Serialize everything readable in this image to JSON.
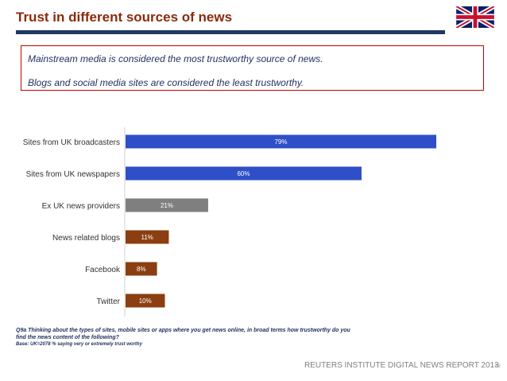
{
  "header": {
    "title": "Trust in different sources of news"
  },
  "callout": {
    "line1": "Mainstream media is considered the most trustworthy source of news.",
    "line2": "Blogs and social media sites are considered the least trustworthy."
  },
  "chart_data": {
    "type": "bar",
    "orientation": "horizontal",
    "categories": [
      "Sites  from UK broadcasters",
      "Sites from UK newspapers",
      "Ex UK news providers",
      "News related blogs",
      "Facebook",
      "Twitter"
    ],
    "values": [
      79,
      60,
      21,
      11,
      8,
      10
    ],
    "value_labels": [
      "79%",
      "60%",
      "21%",
      "11%",
      "8%",
      "10%"
    ],
    "bar_colors": [
      "#2e4fc7",
      "#2e4fc7",
      "#7f7f7f",
      "#8b3e12",
      "#8b3e12",
      "#8b3e12"
    ],
    "xlim": [
      0,
      100
    ],
    "title": "",
    "xlabel": "",
    "ylabel": "",
    "grid": false,
    "legend": "none"
  },
  "footnote": {
    "question_line1": "Q9a Thinking about the types of sites, mobile sites or apps where you get news online,  in broad terms how trustworthy do you",
    "question_line2": "find the news content of the following?",
    "base": "Base: UK=2078   % saying very or extremely trust worthy"
  },
  "footer": {
    "report": "REUTERS INSTITUTE DIGITAL NEWS REPORT 2013",
    "page": "59"
  },
  "colors": {
    "title": "#8b2a0f",
    "rule": "#1f3864",
    "callout_border": "#c00000",
    "mainstream": "#2e4fc7",
    "other": "#7f7f7f",
    "social": "#8b3e12"
  },
  "icons": {
    "flag": "union-jack-flag-icon"
  }
}
